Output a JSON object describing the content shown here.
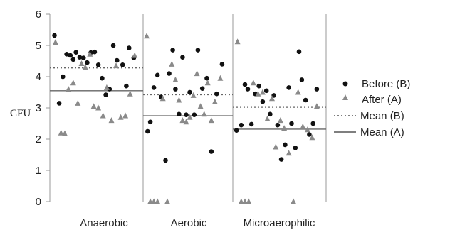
{
  "chart_data": {
    "type": "scatter",
    "ylabel": "CFU",
    "ylim": [
      0,
      6
    ],
    "yticks": [
      "0",
      "1",
      "2",
      "3",
      "4",
      "5",
      "6"
    ],
    "categories": [
      "Anaerobic",
      "Aerobic",
      "Microaerophilic"
    ],
    "legend": {
      "placement": "right",
      "entries": [
        {
          "key": "before",
          "label": "Before  (B)"
        },
        {
          "key": "after",
          "label": "After (A)"
        },
        {
          "key": "mean_before",
          "label": "Mean (B)"
        },
        {
          "key": "mean_after",
          "label": "Mean  (A)"
        }
      ]
    },
    "series": [
      {
        "key": "before",
        "name": "Before  (B)",
        "marker": "circle",
        "points": [
          {
            "cat": 0,
            "x": 0.05,
            "y": 5.32
          },
          {
            "cat": 0,
            "x": 0.1,
            "y": 3.15
          },
          {
            "cat": 0,
            "x": 0.14,
            "y": 4.0
          },
          {
            "cat": 0,
            "x": 0.18,
            "y": 4.72
          },
          {
            "cat": 0,
            "x": 0.22,
            "y": 4.68
          },
          {
            "cat": 0,
            "x": 0.25,
            "y": 4.55
          },
          {
            "cat": 0,
            "x": 0.28,
            "y": 4.78
          },
          {
            "cat": 0,
            "x": 0.32,
            "y": 4.62
          },
          {
            "cat": 0,
            "x": 0.36,
            "y": 4.6
          },
          {
            "cat": 0,
            "x": 0.4,
            "y": 4.45
          },
          {
            "cat": 0,
            "x": 0.44,
            "y": 4.77
          },
          {
            "cat": 0,
            "x": 0.48,
            "y": 4.79
          },
          {
            "cat": 0,
            "x": 0.52,
            "y": 4.38
          },
          {
            "cat": 0,
            "x": 0.56,
            "y": 3.95
          },
          {
            "cat": 0,
            "x": 0.6,
            "y": 3.42
          },
          {
            "cat": 0,
            "x": 0.64,
            "y": 3.6
          },
          {
            "cat": 0,
            "x": 0.68,
            "y": 5.0
          },
          {
            "cat": 0,
            "x": 0.72,
            "y": 4.52
          },
          {
            "cat": 0,
            "x": 0.78,
            "y": 4.38
          },
          {
            "cat": 0,
            "x": 0.82,
            "y": 3.7
          },
          {
            "cat": 0,
            "x": 0.85,
            "y": 4.92
          },
          {
            "cat": 0,
            "x": 0.9,
            "y": 4.6
          },
          {
            "cat": 1,
            "x": 0.05,
            "y": 2.25
          },
          {
            "cat": 1,
            "x": 0.08,
            "y": 2.55
          },
          {
            "cat": 1,
            "x": 0.12,
            "y": 3.65
          },
          {
            "cat": 1,
            "x": 0.16,
            "y": 4.05
          },
          {
            "cat": 1,
            "x": 0.2,
            "y": 3.35
          },
          {
            "cat": 1,
            "x": 0.25,
            "y": 1.32
          },
          {
            "cat": 1,
            "x": 0.29,
            "y": 4.1
          },
          {
            "cat": 1,
            "x": 0.33,
            "y": 4.85
          },
          {
            "cat": 1,
            "x": 0.36,
            "y": 3.6
          },
          {
            "cat": 1,
            "x": 0.4,
            "y": 2.8
          },
          {
            "cat": 1,
            "x": 0.44,
            "y": 4.62
          },
          {
            "cat": 1,
            "x": 0.48,
            "y": 2.78
          },
          {
            "cat": 1,
            "x": 0.52,
            "y": 3.5
          },
          {
            "cat": 1,
            "x": 0.57,
            "y": 2.78
          },
          {
            "cat": 1,
            "x": 0.61,
            "y": 4.85
          },
          {
            "cat": 1,
            "x": 0.66,
            "y": 3.62
          },
          {
            "cat": 1,
            "x": 0.71,
            "y": 3.95
          },
          {
            "cat": 1,
            "x": 0.76,
            "y": 1.6
          },
          {
            "cat": 1,
            "x": 0.82,
            "y": 3.45
          },
          {
            "cat": 1,
            "x": 0.88,
            "y": 4.4
          },
          {
            "cat": 2,
            "x": 0.04,
            "y": 2.28
          },
          {
            "cat": 2,
            "x": 0.09,
            "y": 2.45
          },
          {
            "cat": 2,
            "x": 0.13,
            "y": 3.75
          },
          {
            "cat": 2,
            "x": 0.16,
            "y": 3.6
          },
          {
            "cat": 2,
            "x": 0.2,
            "y": 2.48
          },
          {
            "cat": 2,
            "x": 0.24,
            "y": 3.45
          },
          {
            "cat": 2,
            "x": 0.28,
            "y": 3.7
          },
          {
            "cat": 2,
            "x": 0.32,
            "y": 3.2
          },
          {
            "cat": 2,
            "x": 0.36,
            "y": 3.55
          },
          {
            "cat": 2,
            "x": 0.4,
            "y": 2.8
          },
          {
            "cat": 2,
            "x": 0.44,
            "y": 3.4
          },
          {
            "cat": 2,
            "x": 0.48,
            "y": 2.45
          },
          {
            "cat": 2,
            "x": 0.52,
            "y": 1.35
          },
          {
            "cat": 2,
            "x": 0.56,
            "y": 1.82
          },
          {
            "cat": 2,
            "x": 0.6,
            "y": 3.65
          },
          {
            "cat": 2,
            "x": 0.63,
            "y": 2.5
          },
          {
            "cat": 2,
            "x": 0.67,
            "y": 1.72
          },
          {
            "cat": 2,
            "x": 0.71,
            "y": 4.8
          },
          {
            "cat": 2,
            "x": 0.74,
            "y": 3.9
          },
          {
            "cat": 2,
            "x": 0.78,
            "y": 3.25
          },
          {
            "cat": 2,
            "x": 0.82,
            "y": 2.15
          },
          {
            "cat": 2,
            "x": 0.86,
            "y": 2.5
          },
          {
            "cat": 2,
            "x": 0.9,
            "y": 3.6
          }
        ]
      },
      {
        "key": "after",
        "name": "After (A)",
        "marker": "triangle",
        "points": [
          {
            "cat": 0,
            "x": 0.06,
            "y": 5.1
          },
          {
            "cat": 0,
            "x": 0.12,
            "y": 2.2
          },
          {
            "cat": 0,
            "x": 0.16,
            "y": 2.18
          },
          {
            "cat": 0,
            "x": 0.2,
            "y": 3.6
          },
          {
            "cat": 0,
            "x": 0.25,
            "y": 3.8
          },
          {
            "cat": 0,
            "x": 0.3,
            "y": 3.15
          },
          {
            "cat": 0,
            "x": 0.34,
            "y": 4.42
          },
          {
            "cat": 0,
            "x": 0.38,
            "y": 4.3
          },
          {
            "cat": 0,
            "x": 0.43,
            "y": 4.72
          },
          {
            "cat": 0,
            "x": 0.47,
            "y": 3.05
          },
          {
            "cat": 0,
            "x": 0.52,
            "y": 3.0
          },
          {
            "cat": 0,
            "x": 0.57,
            "y": 2.75
          },
          {
            "cat": 0,
            "x": 0.61,
            "y": 3.65
          },
          {
            "cat": 0,
            "x": 0.66,
            "y": 2.6
          },
          {
            "cat": 0,
            "x": 0.71,
            "y": 4.35
          },
          {
            "cat": 0,
            "x": 0.76,
            "y": 2.7
          },
          {
            "cat": 0,
            "x": 0.81,
            "y": 2.75
          },
          {
            "cat": 0,
            "x": 0.86,
            "y": 3.45
          },
          {
            "cat": 0,
            "x": 0.91,
            "y": 4.68
          },
          {
            "cat": 1,
            "x": 0.04,
            "y": 5.3
          },
          {
            "cat": 1,
            "x": 0.08,
            "y": 0.0
          },
          {
            "cat": 1,
            "x": 0.12,
            "y": 0.0
          },
          {
            "cat": 1,
            "x": 0.16,
            "y": 0.0
          },
          {
            "cat": 1,
            "x": 0.22,
            "y": 3.3
          },
          {
            "cat": 1,
            "x": 0.27,
            "y": 0.0
          },
          {
            "cat": 1,
            "x": 0.32,
            "y": 4.4
          },
          {
            "cat": 1,
            "x": 0.36,
            "y": 3.9
          },
          {
            "cat": 1,
            "x": 0.4,
            "y": 3.25
          },
          {
            "cat": 1,
            "x": 0.44,
            "y": 2.6
          },
          {
            "cat": 1,
            "x": 0.48,
            "y": 2.55
          },
          {
            "cat": 1,
            "x": 0.52,
            "y": 2.7
          },
          {
            "cat": 1,
            "x": 0.56,
            "y": 3.4
          },
          {
            "cat": 1,
            "x": 0.6,
            "y": 4.1
          },
          {
            "cat": 1,
            "x": 0.64,
            "y": 3.05
          },
          {
            "cat": 1,
            "x": 0.68,
            "y": 2.8
          },
          {
            "cat": 1,
            "x": 0.72,
            "y": 3.8
          },
          {
            "cat": 1,
            "x": 0.76,
            "y": 2.6
          },
          {
            "cat": 1,
            "x": 0.8,
            "y": 3.2
          },
          {
            "cat": 1,
            "x": 0.86,
            "y": 3.95
          },
          {
            "cat": 2,
            "x": 0.05,
            "y": 5.12
          },
          {
            "cat": 2,
            "x": 0.09,
            "y": 0.0
          },
          {
            "cat": 2,
            "x": 0.13,
            "y": 0.0
          },
          {
            "cat": 2,
            "x": 0.17,
            "y": 0.0
          },
          {
            "cat": 2,
            "x": 0.22,
            "y": 3.8
          },
          {
            "cat": 2,
            "x": 0.27,
            "y": 3.45
          },
          {
            "cat": 2,
            "x": 0.32,
            "y": 3.5
          },
          {
            "cat": 2,
            "x": 0.37,
            "y": 2.65
          },
          {
            "cat": 2,
            "x": 0.42,
            "y": 3.3
          },
          {
            "cat": 2,
            "x": 0.46,
            "y": 1.75
          },
          {
            "cat": 2,
            "x": 0.51,
            "y": 2.6
          },
          {
            "cat": 2,
            "x": 0.55,
            "y": 2.35
          },
          {
            "cat": 2,
            "x": 0.6,
            "y": 1.55
          },
          {
            "cat": 2,
            "x": 0.65,
            "y": 0.0
          },
          {
            "cat": 2,
            "x": 0.7,
            "y": 3.5
          },
          {
            "cat": 2,
            "x": 0.75,
            "y": 2.4
          },
          {
            "cat": 2,
            "x": 0.8,
            "y": 2.3
          },
          {
            "cat": 2,
            "x": 0.85,
            "y": 2.05
          },
          {
            "cat": 2,
            "x": 0.9,
            "y": 3.05
          }
        ]
      }
    ],
    "means": [
      {
        "key": "mean_before",
        "name": "Mean (B)",
        "style": "dotted",
        "values": [
          4.28,
          3.42,
          3.02
        ]
      },
      {
        "key": "mean_after",
        "name": "Mean  (A)",
        "style": "solid",
        "values": [
          3.55,
          2.75,
          2.32
        ]
      }
    ]
  }
}
